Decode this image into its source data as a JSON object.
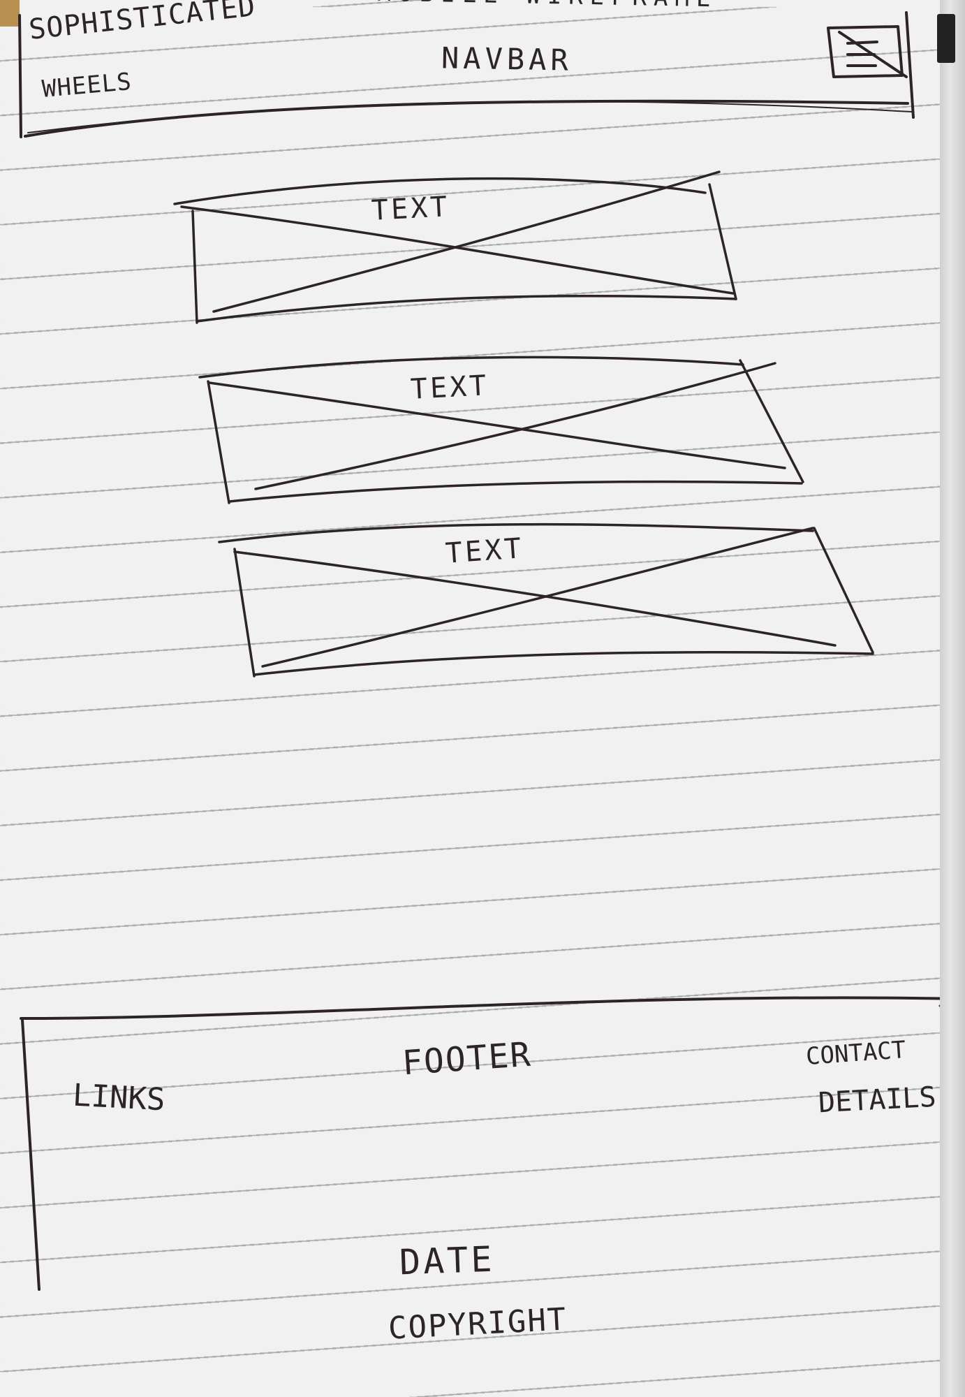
{
  "sketch": {
    "title": "MOBILE WIREFRAME",
    "header": {
      "brand_line1": "SOPHISTICATED",
      "brand_line2": "WHEELS",
      "navbar_label": "NAVBAR",
      "menu_icon": "hamburger-menu-icon"
    },
    "content_blocks": [
      {
        "label": "TEXT",
        "placeholder": "image-placeholder"
      },
      {
        "label": "TEXT",
        "placeholder": "image-placeholder"
      },
      {
        "label": "TEXT",
        "placeholder": "image-placeholder"
      }
    ],
    "footer": {
      "footer_label": "FOOTER",
      "links_label": "LINKS",
      "contact_line1": "CONTACT",
      "contact_line2": "DETAILS",
      "date_label": "DATE",
      "copyright_label": "COPYRIGHT"
    },
    "colors": {
      "paper": "#f1f1f1",
      "ink": "#2c2426",
      "rule_line": "#a9aab0"
    }
  }
}
